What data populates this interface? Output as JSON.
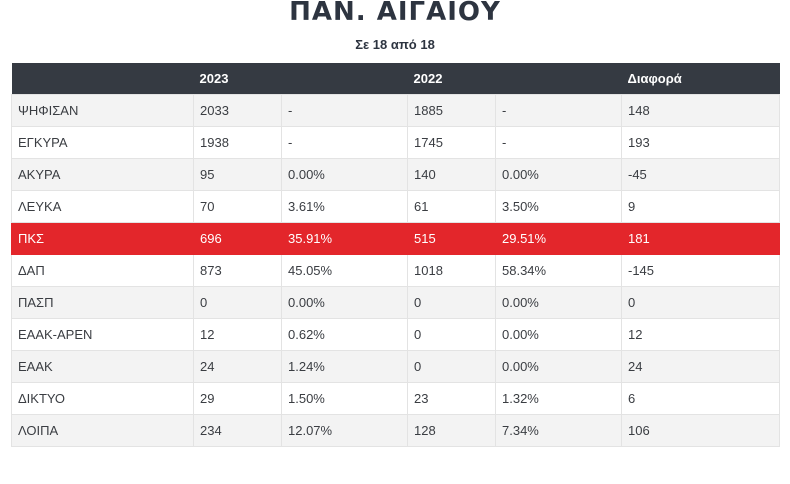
{
  "title": "ΠΑΝ. ΑΙΓΑΙΟΥ",
  "subtitle": "Σε 18 από 18",
  "accent_color": "#e3262b",
  "header_color": "#353a42",
  "table": {
    "headers": [
      "",
      "2023",
      "",
      "2022",
      "",
      "Διαφορά"
    ],
    "highlight_row": "ΠΚΣ",
    "rows": [
      {
        "label": "ΨΗΦΙΣΑΝ",
        "v2023": "2033",
        "p2023": "-",
        "v2022": "1885",
        "p2022": "-",
        "diff": "148"
      },
      {
        "label": "ΕΓΚΥΡΑ",
        "v2023": "1938",
        "p2023": "-",
        "v2022": "1745",
        "p2022": "-",
        "diff": "193"
      },
      {
        "label": "ΑΚΥΡΑ",
        "v2023": "95",
        "p2023": "0.00%",
        "v2022": "140",
        "p2022": "0.00%",
        "diff": "-45"
      },
      {
        "label": "ΛΕΥΚΑ",
        "v2023": "70",
        "p2023": "3.61%",
        "v2022": "61",
        "p2022": "3.50%",
        "diff": "9"
      },
      {
        "label": "ΠΚΣ",
        "v2023": "696",
        "p2023": "35.91%",
        "v2022": "515",
        "p2022": "29.51%",
        "diff": "181"
      },
      {
        "label": "ΔΑΠ",
        "v2023": "873",
        "p2023": "45.05%",
        "v2022": "1018",
        "p2022": "58.34%",
        "diff": "-145"
      },
      {
        "label": "ΠΑΣΠ",
        "v2023": "0",
        "p2023": "0.00%",
        "v2022": "0",
        "p2022": "0.00%",
        "diff": "0"
      },
      {
        "label": "ΕΑΑΚ-ΑΡΕΝ",
        "v2023": "12",
        "p2023": "0.62%",
        "v2022": "0",
        "p2022": "0.00%",
        "diff": "12"
      },
      {
        "label": "ΕΑΑΚ",
        "v2023": "24",
        "p2023": "1.24%",
        "v2022": "0",
        "p2022": "0.00%",
        "diff": "24"
      },
      {
        "label": "ΔΙΚΤΥΟ",
        "v2023": "29",
        "p2023": "1.50%",
        "v2022": "23",
        "p2022": "1.32%",
        "diff": "6"
      },
      {
        "label": "ΛΟΙΠΑ",
        "v2023": "234",
        "p2023": "12.07%",
        "v2022": "128",
        "p2022": "7.34%",
        "diff": "106"
      }
    ]
  }
}
